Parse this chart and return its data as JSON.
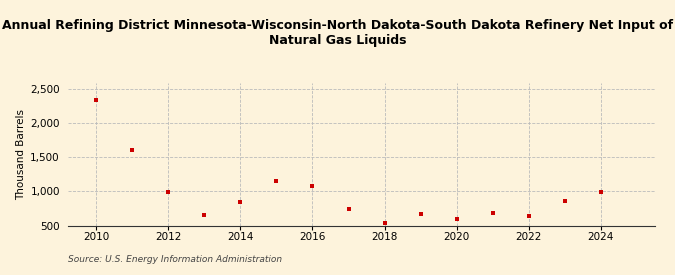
{
  "title": "Annual Refining District Minnesota-Wisconsin-North Dakota-South Dakota Refinery Net Input of\nNatural Gas Liquids",
  "ylabel": "Thousand Barrels",
  "source": "Source: U.S. Energy Information Administration",
  "background_color": "#fdf3dc",
  "plot_bg_color": "#fdf3dc",
  "years": [
    2010,
    2011,
    2012,
    2013,
    2014,
    2015,
    2016,
    2017,
    2018,
    2019,
    2020,
    2021,
    2022,
    2023,
    2024
  ],
  "values": [
    2350,
    1610,
    990,
    650,
    850,
    1160,
    1080,
    740,
    535,
    665,
    595,
    685,
    645,
    855,
    990
  ],
  "marker_color": "#cc0000",
  "marker": "s",
  "marker_size": 3.5,
  "ylim": [
    500,
    2600
  ],
  "yticks": [
    500,
    1000,
    1500,
    2000,
    2500
  ],
  "xticks": [
    2010,
    2012,
    2014,
    2016,
    2018,
    2020,
    2022,
    2024
  ],
  "xlim": [
    2009.2,
    2025.5
  ],
  "grid_color": "#bbbbbb",
  "title_fontsize": 9,
  "axis_fontsize": 7.5,
  "source_fontsize": 6.5
}
